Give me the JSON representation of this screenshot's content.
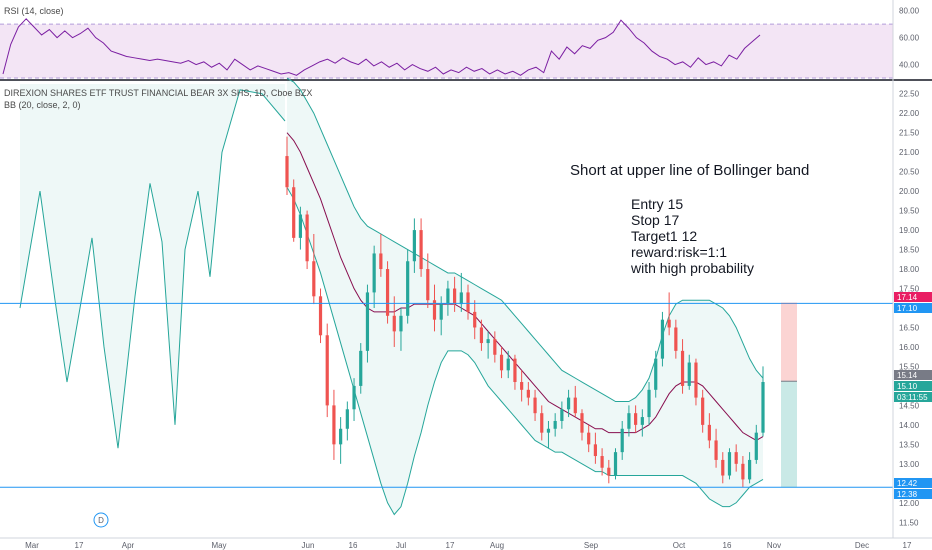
{
  "rsi_pane": {
    "title": "RSI (14, close)",
    "ticks": [
      "80.00",
      "60.00",
      "40.00"
    ]
  },
  "main_pane": {
    "title": "DIREXION SHARES ETF TRUST FINANCIAL BEAR 3X SHS, 1D, Cboe BZX",
    "indicator": "BB (20, close, 2, 0)",
    "price_ticks": [
      "22.50",
      "22.00",
      "21.50",
      "21.00",
      "20.50",
      "20.00",
      "19.50",
      "19.00",
      "18.50",
      "18.00",
      "17.50",
      "17.00",
      "16.50",
      "16.00",
      "15.50",
      "15.00",
      "14.50",
      "14.00",
      "13.50",
      "13.00",
      "12.50",
      "12.00",
      "11.50"
    ]
  },
  "price_labels": [
    {
      "text": "17.14",
      "color": "#e91e63"
    },
    {
      "text": "17.10",
      "color": "#2196f3"
    },
    {
      "text": "15.14",
      "color": "#787b86"
    },
    {
      "text": "15.10",
      "color": "#26a69a"
    },
    {
      "text": "03:11:55",
      "color": "#26a69a"
    },
    {
      "text": "12.42",
      "color": "#2196f3"
    },
    {
      "text": "12.38",
      "color": "#2196f3"
    }
  ],
  "annotation": {
    "headline": "Short at upper line of Bollinger band",
    "lines": [
      "Entry 15",
      "Stop  17",
      "Target1 12",
      "reward:risk=1:1",
      "with high probability"
    ]
  },
  "x_axis": {
    "labels": [
      "Mar",
      "17",
      "Apr",
      "May",
      "Jun",
      "16",
      "Jul",
      "17",
      "Aug",
      "Sep",
      "Oct",
      "16",
      "Nov",
      "Dec",
      "17"
    ],
    "event_marker": "D"
  },
  "colors": {
    "up": "#26a69a",
    "down": "#ef5350",
    "bb_band": "#26a69a",
    "bb_basis": "#880e4f",
    "rsi_line": "#7b1fa2",
    "rsi_fill": "#f3e5f5",
    "hline": "#2196f3"
  },
  "chart_data": [
    {
      "type": "line",
      "title": "RSI (14, close)",
      "ylim": [
        30,
        85
      ],
      "levels": [
        70,
        30
      ],
      "series": [
        {
          "name": "RSI (14, close)",
          "values": [
            33,
            55,
            68,
            74,
            68,
            62,
            66,
            60,
            65,
            60,
            63,
            67,
            60,
            56,
            50,
            48,
            46,
            45,
            44,
            43,
            44,
            43,
            42,
            41,
            43,
            40,
            42,
            38,
            41,
            36,
            44,
            40,
            36,
            39,
            37,
            35,
            33,
            34,
            32,
            36,
            39,
            42,
            44,
            41,
            45,
            42,
            40,
            44,
            39,
            42,
            38,
            41,
            36,
            40,
            37,
            35,
            38,
            33,
            36,
            34,
            38,
            35,
            37,
            33,
            36,
            33,
            35,
            32,
            36,
            38,
            34,
            50,
            44,
            53,
            48,
            54,
            52,
            58,
            60,
            64,
            73,
            67,
            60,
            56,
            50,
            46,
            44,
            40,
            42,
            38,
            45,
            40,
            42,
            39,
            47,
            44,
            52,
            57,
            62
          ]
        }
      ]
    },
    {
      "type": "candlestick",
      "title": "DIREXION SHARES ETF TRUST FINANCIAL BEAR 3X SHS, 1D, Cboe BZX",
      "ylim": [
        11.25,
        22.75
      ],
      "ohlc": [
        [
          20.9,
          21.4,
          19.9,
          20.1
        ],
        [
          20.1,
          20.3,
          18.7,
          18.8
        ],
        [
          18.8,
          19.6,
          18.5,
          19.4
        ],
        [
          19.4,
          19.5,
          18.0,
          18.2
        ],
        [
          18.2,
          18.9,
          17.1,
          17.3
        ],
        [
          17.3,
          17.5,
          16.1,
          16.3
        ],
        [
          16.3,
          16.6,
          14.2,
          14.5
        ],
        [
          14.5,
          14.9,
          13.1,
          13.5
        ],
        [
          13.5,
          14.2,
          13.0,
          13.9
        ],
        [
          13.9,
          14.6,
          13.6,
          14.4
        ],
        [
          14.4,
          15.2,
          14.1,
          15.0
        ],
        [
          15.0,
          16.1,
          14.8,
          15.9
        ],
        [
          15.9,
          17.6,
          15.6,
          17.4
        ],
        [
          17.4,
          18.6,
          17.0,
          18.4
        ],
        [
          18.4,
          18.9,
          17.8,
          18.0
        ],
        [
          18.0,
          18.2,
          16.6,
          16.8
        ],
        [
          16.8,
          17.3,
          16.0,
          16.4
        ],
        [
          16.4,
          17.0,
          15.9,
          16.8
        ],
        [
          16.8,
          18.5,
          16.6,
          18.2
        ],
        [
          18.2,
          19.3,
          17.9,
          19.0
        ],
        [
          19.0,
          19.3,
          17.8,
          18.0
        ],
        [
          18.0,
          18.4,
          17.0,
          17.2
        ],
        [
          17.2,
          17.6,
          16.4,
          16.7
        ],
        [
          16.7,
          17.3,
          16.3,
          17.1
        ],
        [
          17.1,
          17.7,
          16.8,
          17.5
        ],
        [
          17.5,
          17.8,
          16.9,
          17.1
        ],
        [
          17.1,
          17.9,
          16.9,
          17.4
        ],
        [
          17.4,
          17.6,
          16.7,
          16.9
        ],
        [
          16.9,
          17.2,
          16.2,
          16.5
        ],
        [
          16.5,
          16.7,
          15.9,
          16.1
        ],
        [
          16.1,
          16.4,
          15.7,
          16.2
        ],
        [
          16.2,
          16.4,
          15.6,
          15.8
        ],
        [
          15.8,
          16.0,
          15.2,
          15.4
        ],
        [
          15.4,
          15.9,
          15.2,
          15.7
        ],
        [
          15.7,
          15.8,
          14.9,
          15.1
        ],
        [
          15.1,
          15.4,
          14.6,
          14.9
        ],
        [
          14.9,
          15.1,
          14.5,
          14.7
        ],
        [
          14.7,
          14.9,
          14.1,
          14.3
        ],
        [
          14.3,
          14.5,
          13.6,
          13.8
        ],
        [
          13.8,
          14.1,
          13.4,
          13.9
        ],
        [
          13.9,
          14.3,
          13.7,
          14.1
        ],
        [
          14.1,
          14.6,
          13.9,
          14.4
        ],
        [
          14.4,
          14.9,
          14.2,
          14.7
        ],
        [
          14.7,
          15.0,
          14.2,
          14.3
        ],
        [
          14.3,
          14.4,
          13.6,
          13.8
        ],
        [
          13.8,
          14.0,
          13.3,
          13.5
        ],
        [
          13.5,
          13.8,
          13.0,
          13.2
        ],
        [
          13.2,
          13.4,
          12.7,
          12.9
        ],
        [
          12.9,
          13.1,
          12.5,
          12.7
        ],
        [
          12.7,
          13.4,
          12.6,
          13.3
        ],
        [
          13.3,
          14.1,
          13.1,
          13.9
        ],
        [
          13.9,
          14.5,
          13.7,
          14.3
        ],
        [
          14.3,
          14.5,
          13.8,
          14.0
        ],
        [
          14.0,
          14.4,
          13.7,
          14.2
        ],
        [
          14.2,
          15.1,
          14.0,
          14.9
        ],
        [
          14.9,
          15.9,
          14.7,
          15.7
        ],
        [
          15.7,
          16.9,
          15.5,
          16.7
        ],
        [
          16.7,
          17.4,
          16.3,
          16.5
        ],
        [
          16.5,
          16.7,
          15.7,
          15.9
        ],
        [
          15.9,
          16.2,
          14.8,
          15.0
        ],
        [
          15.0,
          15.8,
          14.9,
          15.6
        ],
        [
          15.6,
          15.7,
          14.5,
          14.7
        ],
        [
          14.7,
          14.9,
          13.8,
          14.0
        ],
        [
          14.0,
          14.3,
          13.4,
          13.6
        ],
        [
          13.6,
          13.9,
          12.9,
          13.1
        ],
        [
          13.1,
          13.3,
          12.5,
          12.7
        ],
        [
          12.7,
          13.4,
          12.6,
          13.3
        ],
        [
          13.3,
          13.5,
          12.8,
          13.0
        ],
        [
          13.0,
          13.2,
          12.4,
          12.6
        ],
        [
          12.6,
          13.3,
          12.5,
          13.1
        ],
        [
          13.1,
          14.0,
          13.0,
          13.8
        ],
        [
          13.8,
          15.5,
          13.7,
          15.1
        ]
      ],
      "bb_upper": [
        22.9,
        22.8,
        22.6,
        22.3,
        22.0,
        21.6,
        21.2,
        20.8,
        20.4,
        20.0,
        19.6,
        19.3,
        19.1,
        19.0,
        18.9,
        18.8,
        18.7,
        18.6,
        18.5,
        18.4,
        18.3,
        18.2,
        18.1,
        18.0,
        17.9,
        17.9,
        17.8,
        17.7,
        17.6,
        17.5,
        17.4,
        17.3,
        17.2,
        17.0,
        16.8,
        16.6,
        16.4,
        16.2,
        16.0,
        15.8,
        15.6,
        15.4,
        15.3,
        15.2,
        15.1,
        15.0,
        14.9,
        14.8,
        14.7,
        14.6,
        14.6,
        14.6,
        14.7,
        14.9,
        15.2,
        15.7,
        16.3,
        16.8,
        17.1,
        17.2,
        17.2,
        17.2,
        17.2,
        17.2,
        17.1,
        17.0,
        16.8,
        16.5,
        16.1,
        15.7,
        15.4,
        15.2
      ],
      "bb_basis": [
        21.5,
        21.3,
        21.0,
        20.6,
        20.2,
        19.8,
        19.3,
        18.8,
        18.3,
        17.9,
        17.5,
        17.2,
        17.0,
        16.9,
        16.9,
        16.9,
        16.9,
        17.0,
        17.0,
        17.1,
        17.1,
        17.1,
        17.1,
        17.1,
        17.1,
        17.1,
        17.0,
        16.9,
        16.8,
        16.6,
        16.4,
        16.2,
        16.0,
        15.8,
        15.6,
        15.4,
        15.2,
        15.0,
        14.8,
        14.6,
        14.5,
        14.4,
        14.3,
        14.2,
        14.1,
        14.0,
        13.9,
        13.9,
        13.8,
        13.8,
        13.8,
        13.8,
        13.8,
        13.9,
        14.0,
        14.2,
        14.5,
        14.8,
        15.0,
        15.1,
        15.1,
        15.1,
        15.0,
        14.8,
        14.6,
        14.4,
        14.2,
        14.0,
        13.8,
        13.7,
        13.6,
        13.7
      ],
      "bb_lower": [
        20.1,
        19.8,
        19.4,
        18.9,
        18.4,
        17.9,
        17.3,
        16.7,
        16.1,
        15.5,
        14.9,
        14.3,
        13.7,
        13.1,
        12.5,
        12.0,
        11.7,
        11.9,
        12.5,
        13.2,
        13.8,
        14.5,
        15.1,
        15.6,
        15.9,
        15.9,
        15.9,
        15.8,
        15.6,
        15.3,
        15.0,
        14.8,
        14.6,
        14.4,
        14.2,
        14.0,
        13.8,
        13.6,
        13.5,
        13.4,
        13.3,
        13.3,
        13.2,
        13.1,
        13.0,
        12.9,
        12.8,
        12.8,
        12.7,
        12.7,
        12.7,
        12.7,
        12.7,
        12.7,
        12.7,
        12.7,
        12.7,
        12.7,
        12.7,
        12.7,
        12.6,
        12.5,
        12.3,
        12.1,
        12.0,
        11.9,
        11.9,
        12.0,
        12.2,
        12.4,
        12.5,
        12.6
      ],
      "horizontal_lines": [
        17.12,
        12.4
      ],
      "position": {
        "entry": 15.12,
        "stop": 17.14,
        "target": 12.4
      }
    }
  ]
}
